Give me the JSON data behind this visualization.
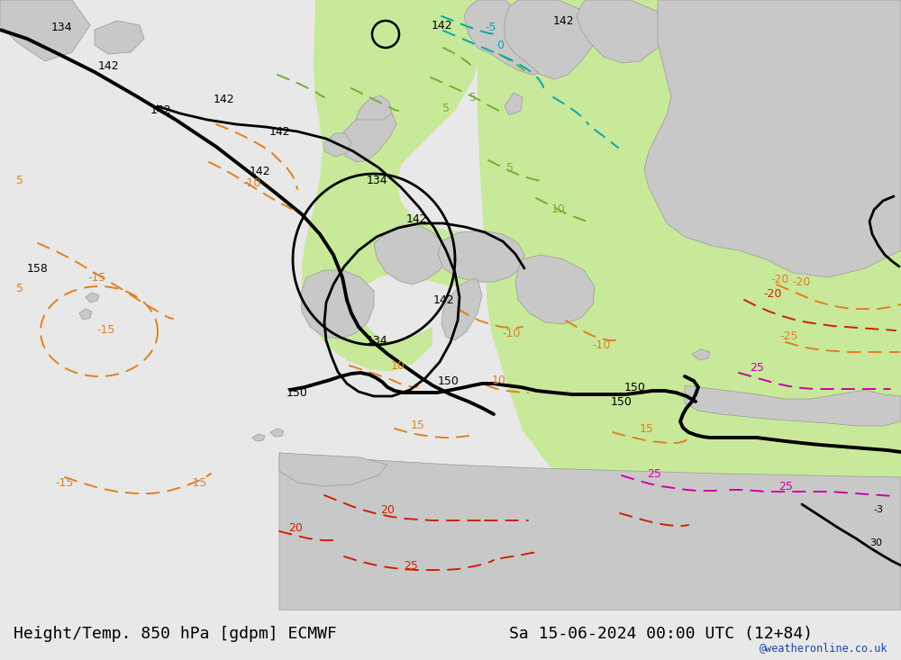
{
  "title_left": "Height/Temp. 850 hPa [gdpm] ECMWF",
  "title_right": "Sa 15-06-2024 00:00 UTC (12+84)",
  "watermark": "@weatheronline.co.uk",
  "bg_color": "#e8e8e8",
  "sea_color": "#e8e8e8",
  "land_color": "#c8c8c8",
  "green_fill": "#c8e89a",
  "title_fontsize": 13,
  "watermark_color": "#1a44aa",
  "bottom_bar_color": "#ffffff",
  "black": "#000000",
  "orange": "#e08020",
  "green_c": "#70b030",
  "cyan": "#00aaaa",
  "red": "#cc2200",
  "magenta": "#cc00aa",
  "label_fs": 9,
  "lw_black": 2.0,
  "lw_temp": 1.4
}
